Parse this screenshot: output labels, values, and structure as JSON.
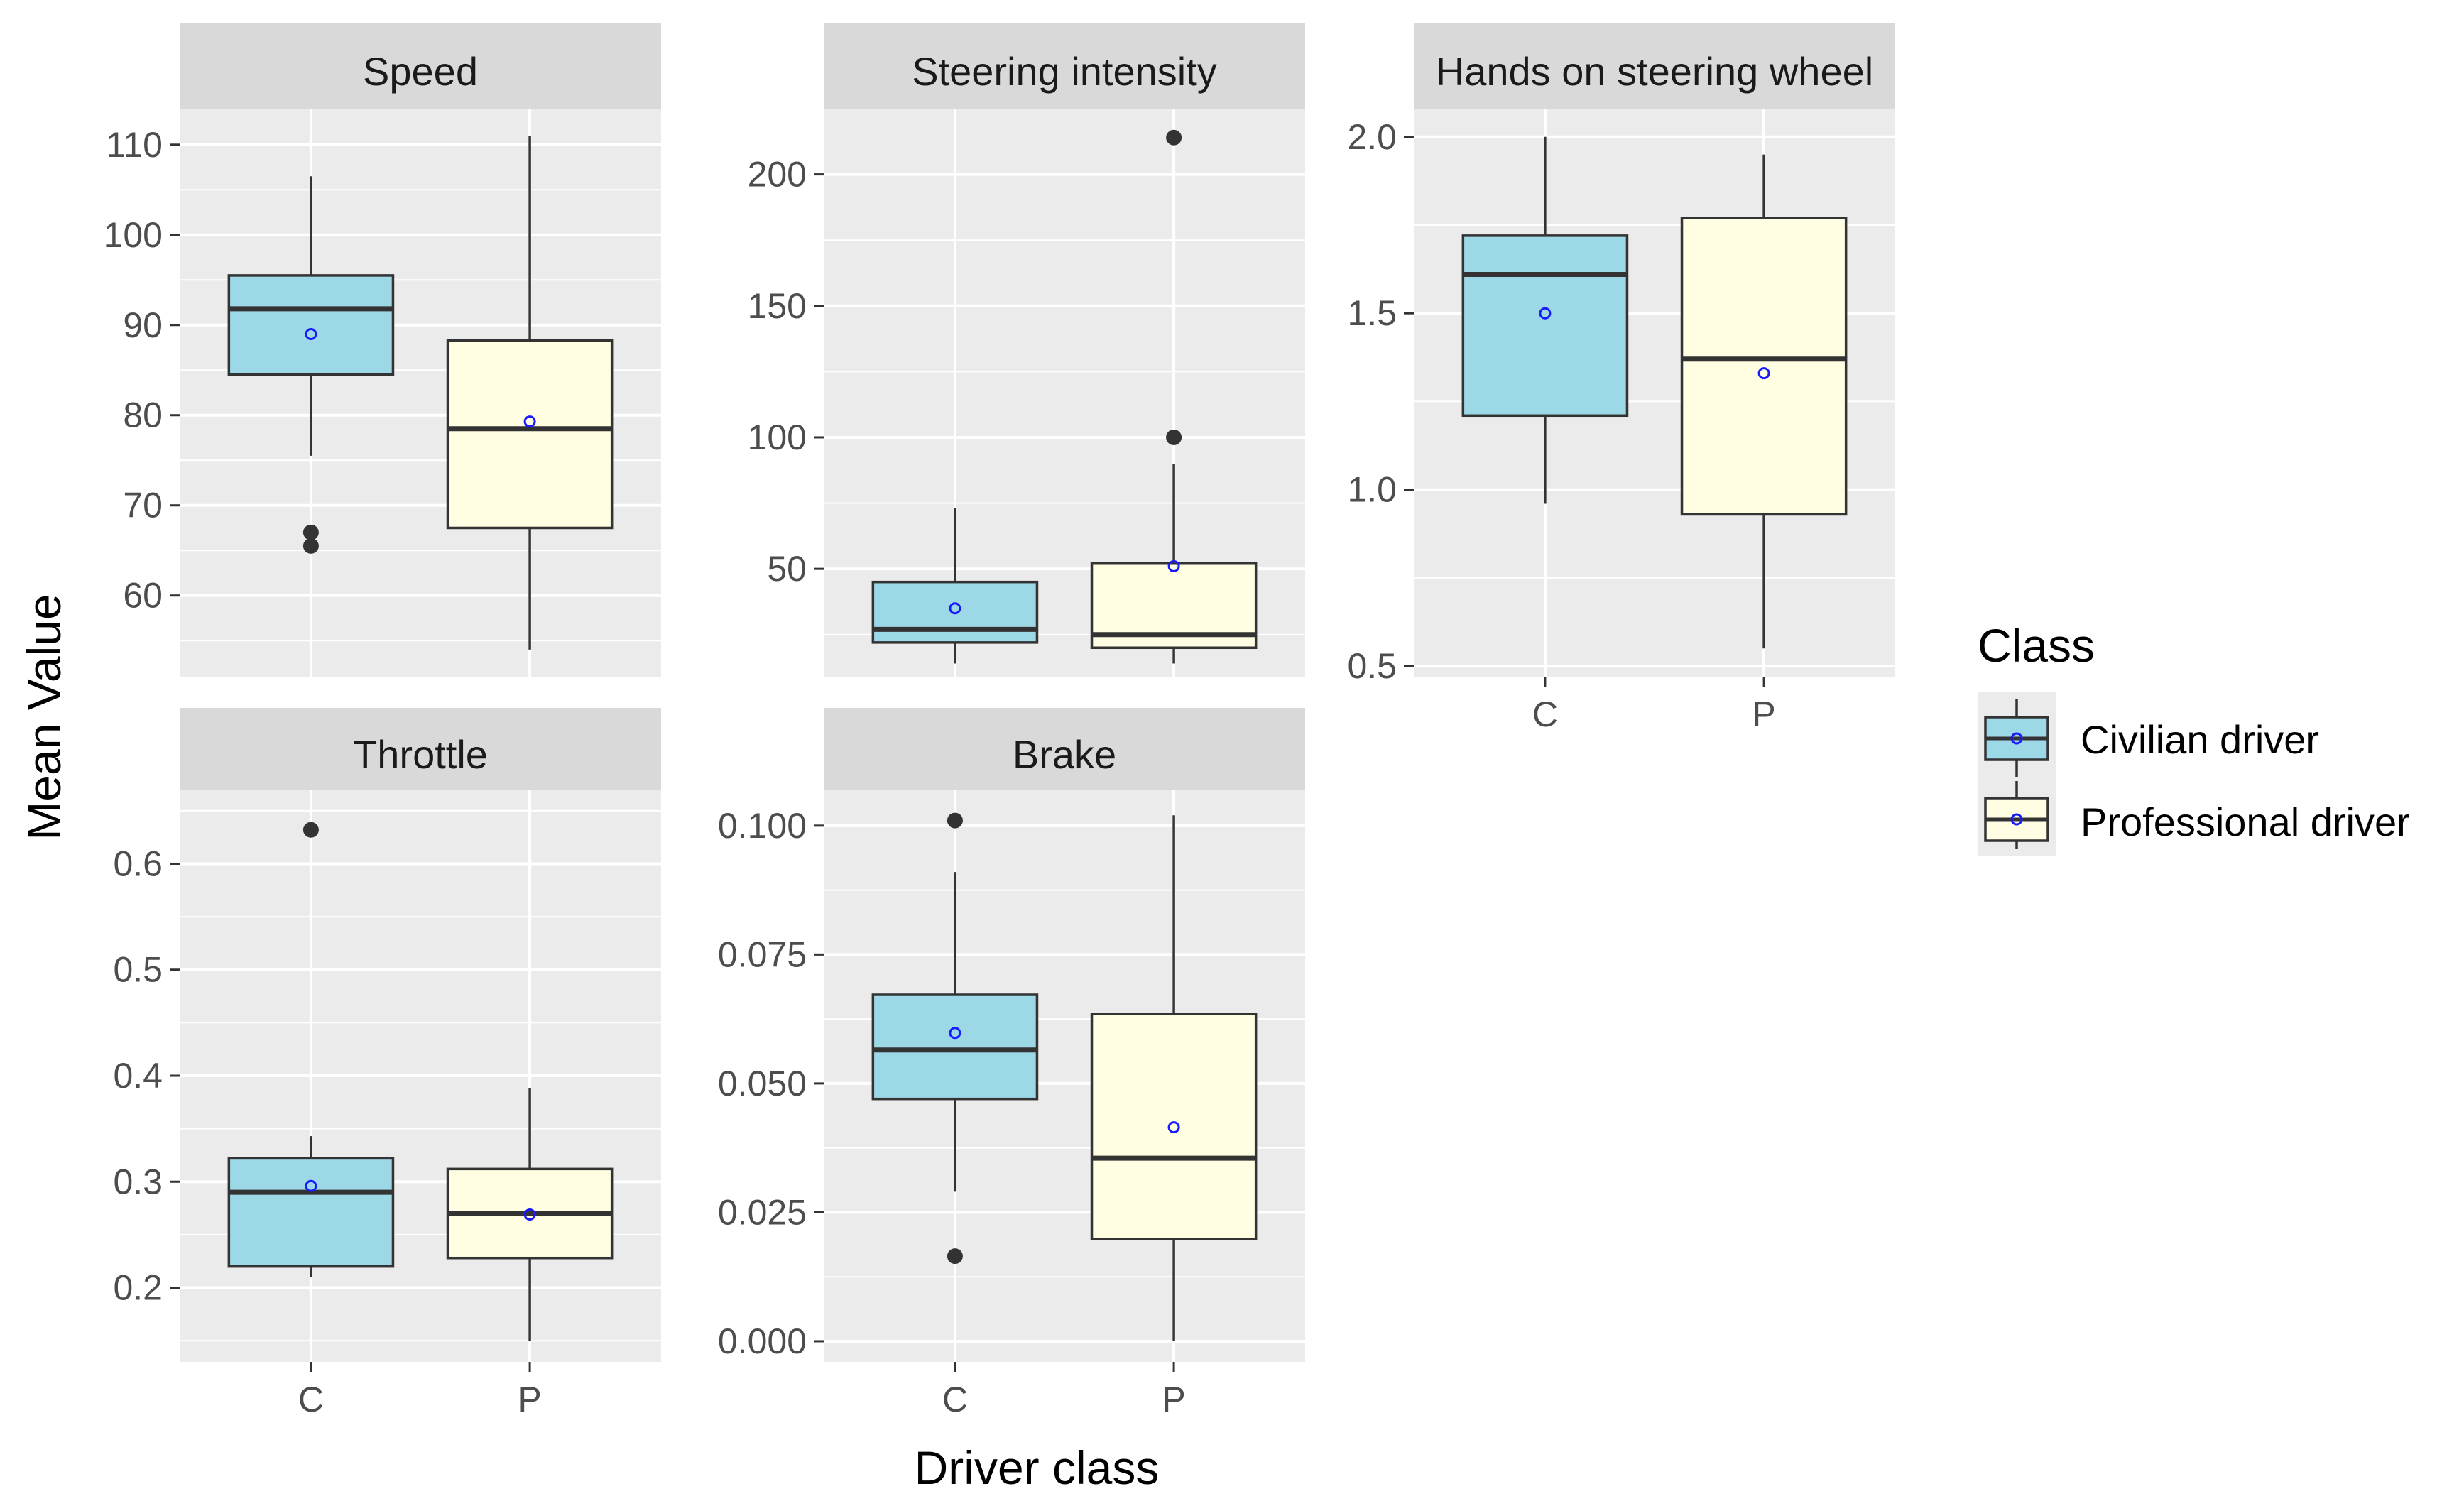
{
  "chart_data": {
    "type": "boxplot",
    "xlabel": "Driver class",
    "ylabel": "Mean Value",
    "categories": [
      "C",
      "P"
    ],
    "legend": {
      "title": "Class",
      "entries": [
        {
          "key": "C",
          "label": "Civilian driver",
          "color": "#9cd8e6"
        },
        {
          "key": "P",
          "label": "Professional driver",
          "color": "#fffee2"
        }
      ]
    },
    "mean_marker_color": "#1a1aff",
    "panels": [
      {
        "title": "Speed",
        "ylim": [
          51,
          114
        ],
        "yticks": [
          60,
          70,
          80,
          90,
          100,
          110
        ],
        "tick_labels": [
          "60",
          "70",
          "80",
          "90",
          "100",
          "110"
        ],
        "show_x_labels": false,
        "boxes": [
          {
            "category": "C",
            "whisker_low": 75.5,
            "q1": 84.5,
            "median": 91.8,
            "q3": 95.5,
            "whisker_high": 106.5,
            "mean": 89,
            "outliers": [
              67,
              65.5
            ]
          },
          {
            "category": "P",
            "whisker_low": 54,
            "q1": 67.5,
            "median": 78.5,
            "q3": 88.3,
            "whisker_high": 111,
            "mean": 79.3,
            "outliers": []
          }
        ]
      },
      {
        "title": "Steering intensity",
        "ylim": [
          9,
          225
        ],
        "yticks": [
          50,
          100,
          150,
          200
        ],
        "tick_labels": [
          "50",
          "100",
          "150",
          "200"
        ],
        "show_x_labels": false,
        "boxes": [
          {
            "category": "C",
            "whisker_low": 14,
            "q1": 22,
            "median": 27,
            "q3": 45,
            "whisker_high": 73,
            "mean": 35,
            "outliers": []
          },
          {
            "category": "P",
            "whisker_low": 14,
            "q1": 20,
            "median": 25,
            "q3": 52,
            "whisker_high": 90,
            "mean": 51,
            "outliers": [
              100,
              214
            ]
          }
        ]
      },
      {
        "title": "Hands on steering wheel",
        "ylim": [
          0.47,
          2.08
        ],
        "yticks": [
          0.5,
          1.0,
          1.5,
          2.0
        ],
        "tick_labels": [
          "0.5",
          "1.0",
          "1.5",
          "2.0"
        ],
        "show_x_labels": true,
        "boxes": [
          {
            "category": "C",
            "whisker_low": 0.96,
            "q1": 1.21,
            "median": 1.61,
            "q3": 1.72,
            "whisker_high": 2.0,
            "mean": 1.5,
            "outliers": []
          },
          {
            "category": "P",
            "whisker_low": 0.55,
            "q1": 0.93,
            "median": 1.37,
            "q3": 1.77,
            "whisker_high": 1.95,
            "mean": 1.33,
            "outliers": []
          }
        ]
      },
      {
        "title": "Throttle",
        "ylim": [
          0.13,
          0.67
        ],
        "yticks": [
          0.2,
          0.3,
          0.4,
          0.5,
          0.6
        ],
        "tick_labels": [
          "0.2",
          "0.3",
          "0.4",
          "0.5",
          "0.6"
        ],
        "show_x_labels": true,
        "boxes": [
          {
            "category": "C",
            "whisker_low": 0.21,
            "q1": 0.22,
            "median": 0.29,
            "q3": 0.322,
            "whisker_high": 0.343,
            "mean": 0.296,
            "outliers": [
              0.632
            ]
          },
          {
            "category": "P",
            "whisker_low": 0.15,
            "q1": 0.228,
            "median": 0.27,
            "q3": 0.312,
            "whisker_high": 0.388,
            "mean": 0.269,
            "outliers": []
          }
        ]
      },
      {
        "title": "Brake",
        "ylim": [
          -0.004,
          0.107
        ],
        "yticks": [
          0.0,
          0.025,
          0.05,
          0.075,
          0.1
        ],
        "tick_labels": [
          "0.000",
          "0.025",
          "0.050",
          "0.075",
          "0.100"
        ],
        "show_x_labels": true,
        "boxes": [
          {
            "category": "C",
            "whisker_low": 0.029,
            "q1": 0.047,
            "median": 0.0565,
            "q3": 0.0672,
            "whisker_high": 0.091,
            "mean": 0.0598,
            "outliers": [
              0.101,
              0.0165
            ]
          },
          {
            "category": "P",
            "whisker_low": 0.0,
            "q1": 0.0198,
            "median": 0.0355,
            "q3": 0.0635,
            "whisker_high": 0.102,
            "mean": 0.0415,
            "outliers": []
          }
        ]
      }
    ]
  }
}
